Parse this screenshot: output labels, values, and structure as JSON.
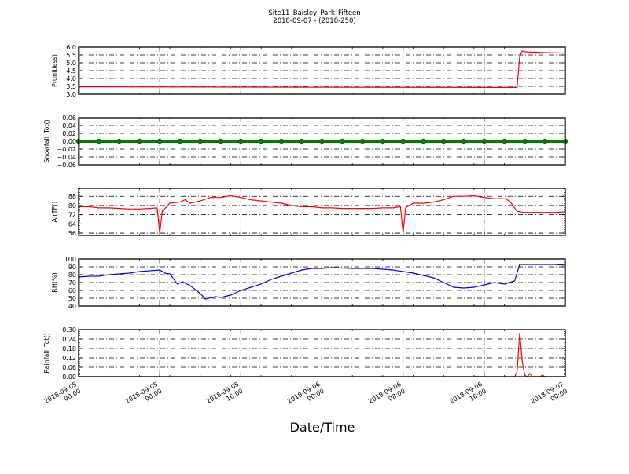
{
  "chart_data": {
    "title": "Site11_Baisley_Park_Fifteen",
    "subtitle": "2018-09-07 - (2018-250)",
    "xlabel": "Date/Time",
    "xlim": [
      "2018-09-05 00:00",
      "2018-09-07 00:00"
    ],
    "xticks": [
      {
        "date": "2018-09-05",
        "time": "00:00",
        "at": "2018-09-05 00:00"
      },
      {
        "date": "2018-09-05",
        "time": "08:00",
        "at": "2018-09-05 08:00"
      },
      {
        "date": "2018-09-05",
        "time": "16:00",
        "at": "2018-09-05 16:00"
      },
      {
        "date": "2018-09-06",
        "time": "00:00",
        "at": "2018-09-06 00:00"
      },
      {
        "date": "2018-09-06",
        "time": "08:00",
        "at": "2018-09-06 08:00"
      },
      {
        "date": "2018-09-06",
        "time": "16:00",
        "at": "2018-09-06 16:00"
      },
      {
        "date": "2018-09-07",
        "time": "00:00",
        "at": "2018-09-07 00:00"
      }
    ],
    "grid": true,
    "panels": [
      {
        "type": "line",
        "ylabel": "P(unitless)",
        "color": "#ff0000",
        "ylim": [
          3.0,
          6.0
        ],
        "yticks": [
          "3.0",
          "3.5",
          "4.0",
          "4.5",
          "5.0",
          "5.5",
          "6.0"
        ],
        "points": [
          [
            "2018-09-05 00:00",
            3.47
          ],
          [
            "2018-09-06 00:00",
            3.44
          ],
          [
            "2018-09-06 19:00",
            3.43
          ],
          [
            "2018-09-06 19:15",
            3.43
          ],
          [
            "2018-09-06 19:30",
            5.4
          ],
          [
            "2018-09-06 19:45",
            5.75
          ],
          [
            "2018-09-06 20:00",
            5.7
          ],
          [
            "2018-09-06 22:00",
            5.65
          ],
          [
            "2018-09-07 00:00",
            5.62
          ]
        ]
      },
      {
        "type": "line",
        "ylabel": "Snowfall_Tot()",
        "color": "#008000",
        "markers": true,
        "ylim": [
          -0.06,
          0.06
        ],
        "yticks": [
          "−0.06",
          "−0.04",
          "−0.02",
          "0.00",
          "0.02",
          "0.04",
          "0.06"
        ],
        "points": [
          [
            "2018-09-05 00:00",
            0
          ],
          [
            "2018-09-05 02:00",
            0
          ],
          [
            "2018-09-05 04:00",
            0
          ],
          [
            "2018-09-05 06:00",
            0
          ],
          [
            "2018-09-05 08:00",
            0
          ],
          [
            "2018-09-05 10:00",
            0
          ],
          [
            "2018-09-05 12:00",
            0
          ],
          [
            "2018-09-05 14:00",
            0
          ],
          [
            "2018-09-05 16:00",
            0
          ],
          [
            "2018-09-05 18:00",
            0
          ],
          [
            "2018-09-05 20:00",
            0
          ],
          [
            "2018-09-05 22:00",
            0
          ],
          [
            "2018-09-06 00:00",
            0
          ],
          [
            "2018-09-06 02:00",
            0
          ],
          [
            "2018-09-06 04:00",
            0
          ],
          [
            "2018-09-06 06:00",
            0
          ],
          [
            "2018-09-06 08:00",
            0
          ],
          [
            "2018-09-06 10:00",
            0
          ],
          [
            "2018-09-06 12:00",
            0
          ],
          [
            "2018-09-06 14:00",
            0
          ],
          [
            "2018-09-06 16:00",
            0
          ],
          [
            "2018-09-06 18:00",
            0
          ],
          [
            "2018-09-06 20:00",
            0
          ],
          [
            "2018-09-06 22:00",
            0
          ],
          [
            "2018-09-07 00:00",
            0
          ]
        ]
      },
      {
        "type": "line",
        "ylabel": "AirTF()",
        "color": "#ff0000",
        "ylim": [
          54,
          95
        ],
        "yticks": [
          "56",
          "64",
          "72",
          "80",
          "88"
        ],
        "points": [
          [
            "2018-09-05 00:00",
            79
          ],
          [
            "2018-09-05 01:00",
            79
          ],
          [
            "2018-09-05 02:00",
            78
          ],
          [
            "2018-09-05 03:00",
            78
          ],
          [
            "2018-09-05 04:00",
            77.5
          ],
          [
            "2018-09-05 05:00",
            77
          ],
          [
            "2018-09-05 06:00",
            77
          ],
          [
            "2018-09-05 07:00",
            77.5
          ],
          [
            "2018-09-05 07:45",
            78
          ],
          [
            "2018-09-05 08:00",
            56
          ],
          [
            "2018-09-05 08:15",
            75
          ],
          [
            "2018-09-05 09:00",
            82
          ],
          [
            "2018-09-05 10:00",
            83
          ],
          [
            "2018-09-05 10:30",
            85
          ],
          [
            "2018-09-05 11:00",
            82
          ],
          [
            "2018-09-05 12:00",
            84
          ],
          [
            "2018-09-05 13:00",
            87
          ],
          [
            "2018-09-05 14:00",
            87
          ],
          [
            "2018-09-05 15:00",
            88.5
          ],
          [
            "2018-09-05 16:00",
            87
          ],
          [
            "2018-09-05 17:00",
            85
          ],
          [
            "2018-09-05 18:00",
            84
          ],
          [
            "2018-09-05 19:00",
            83
          ],
          [
            "2018-09-05 20:00",
            82
          ],
          [
            "2018-09-05 21:00",
            80
          ],
          [
            "2018-09-05 22:00",
            79
          ],
          [
            "2018-09-05 23:00",
            79
          ],
          [
            "2018-09-06 00:00",
            78
          ],
          [
            "2018-09-06 01:00",
            78
          ],
          [
            "2018-09-06 02:00",
            77.5
          ],
          [
            "2018-09-06 03:00",
            77.5
          ],
          [
            "2018-09-06 04:00",
            77.5
          ],
          [
            "2018-09-06 05:00",
            77.5
          ],
          [
            "2018-09-06 06:00",
            78
          ],
          [
            "2018-09-06 07:00",
            78
          ],
          [
            "2018-09-06 07:45",
            79
          ],
          [
            "2018-09-06 08:00",
            56
          ],
          [
            "2018-09-06 08:15",
            78
          ],
          [
            "2018-09-06 09:00",
            82
          ],
          [
            "2018-09-06 10:00",
            82
          ],
          [
            "2018-09-06 11:00",
            83
          ],
          [
            "2018-09-06 12:00",
            85
          ],
          [
            "2018-09-06 13:00",
            88
          ],
          [
            "2018-09-06 14:00",
            88
          ],
          [
            "2018-09-06 15:00",
            88.5
          ],
          [
            "2018-09-06 16:00",
            87
          ],
          [
            "2018-09-06 17:00",
            86
          ],
          [
            "2018-09-06 18:00",
            86
          ],
          [
            "2018-09-06 18:30",
            84
          ],
          [
            "2018-09-06 19:15",
            75
          ],
          [
            "2018-09-06 20:00",
            74
          ],
          [
            "2018-09-06 21:00",
            74
          ],
          [
            "2018-09-06 22:00",
            74
          ],
          [
            "2018-09-06 23:00",
            74
          ],
          [
            "2018-09-07 00:00",
            74.5
          ]
        ]
      },
      {
        "type": "line",
        "ylabel": "RH(%)",
        "color": "#0000ff",
        "ylim": [
          40,
          100
        ],
        "yticks": [
          "40",
          "50",
          "60",
          "70",
          "80",
          "90",
          "100"
        ],
        "points": [
          [
            "2018-09-05 00:00",
            77
          ],
          [
            "2018-09-05 01:00",
            78
          ],
          [
            "2018-09-05 02:00",
            78
          ],
          [
            "2018-09-05 03:00",
            80
          ],
          [
            "2018-09-05 04:00",
            81
          ],
          [
            "2018-09-05 05:00",
            82
          ],
          [
            "2018-09-05 06:00",
            84
          ],
          [
            "2018-09-05 07:00",
            85
          ],
          [
            "2018-09-05 08:00",
            86
          ],
          [
            "2018-09-05 08:30",
            82
          ],
          [
            "2018-09-05 09:00",
            81
          ],
          [
            "2018-09-05 09:45",
            68
          ],
          [
            "2018-09-05 10:15",
            71
          ],
          [
            "2018-09-05 11:00",
            66
          ],
          [
            "2018-09-05 12:00",
            56
          ],
          [
            "2018-09-05 12:30",
            49
          ],
          [
            "2018-09-05 13:30",
            52
          ],
          [
            "2018-09-05 14:00",
            51
          ],
          [
            "2018-09-05 15:00",
            54
          ],
          [
            "2018-09-05 16:00",
            60
          ],
          [
            "2018-09-05 17:00",
            64
          ],
          [
            "2018-09-05 18:00",
            68
          ],
          [
            "2018-09-05 19:00",
            74
          ],
          [
            "2018-09-05 20:00",
            78
          ],
          [
            "2018-09-05 21:00",
            82
          ],
          [
            "2018-09-05 22:00",
            86
          ],
          [
            "2018-09-05 23:00",
            88
          ],
          [
            "2018-09-06 00:00",
            88
          ],
          [
            "2018-09-06 01:00",
            89
          ],
          [
            "2018-09-06 02:00",
            88.5
          ],
          [
            "2018-09-06 03:00",
            88
          ],
          [
            "2018-09-06 04:00",
            88
          ],
          [
            "2018-09-06 05:00",
            88
          ],
          [
            "2018-09-06 06:00",
            87
          ],
          [
            "2018-09-06 07:00",
            86
          ],
          [
            "2018-09-06 08:00",
            84
          ],
          [
            "2018-09-06 09:00",
            82
          ],
          [
            "2018-09-06 10:00",
            79
          ],
          [
            "2018-09-06 11:00",
            76
          ],
          [
            "2018-09-06 12:00",
            70
          ],
          [
            "2018-09-06 13:00",
            64
          ],
          [
            "2018-09-06 14:00",
            63
          ],
          [
            "2018-09-06 15:00",
            64
          ],
          [
            "2018-09-06 16:00",
            67
          ],
          [
            "2018-09-06 17:00",
            70
          ],
          [
            "2018-09-06 18:00",
            68
          ],
          [
            "2018-09-06 19:00",
            72
          ],
          [
            "2018-09-06 19:30",
            93
          ],
          [
            "2018-09-06 21:00",
            93
          ],
          [
            "2018-09-06 22:00",
            93
          ],
          [
            "2018-09-06 23:00",
            93
          ],
          [
            "2018-09-07 00:00",
            92
          ]
        ]
      },
      {
        "type": "line",
        "ylabel": "Rainfall_Tot()",
        "color": "#ff0000",
        "ylim": [
          0,
          0.3
        ],
        "yticks": [
          "0.00",
          "0.06",
          "0.12",
          "0.18",
          "0.24",
          "0.30"
        ],
        "points": [
          [
            "2018-09-05 00:00",
            0
          ],
          [
            "2018-09-06 19:00",
            0
          ],
          [
            "2018-09-06 19:15",
            0.03
          ],
          [
            "2018-09-06 19:30",
            0.28
          ],
          [
            "2018-09-06 19:45",
            0.1
          ],
          [
            "2018-09-06 20:00",
            0.01
          ],
          [
            "2018-09-06 20:15",
            0
          ],
          [
            "2018-09-06 20:30",
            0.02
          ],
          [
            "2018-09-06 20:45",
            0
          ],
          [
            "2018-09-06 21:30",
            0
          ],
          [
            "2018-09-06 21:45",
            0.01
          ],
          [
            "2018-09-06 22:00",
            0
          ],
          [
            "2018-09-07 00:00",
            0
          ]
        ]
      }
    ]
  }
}
